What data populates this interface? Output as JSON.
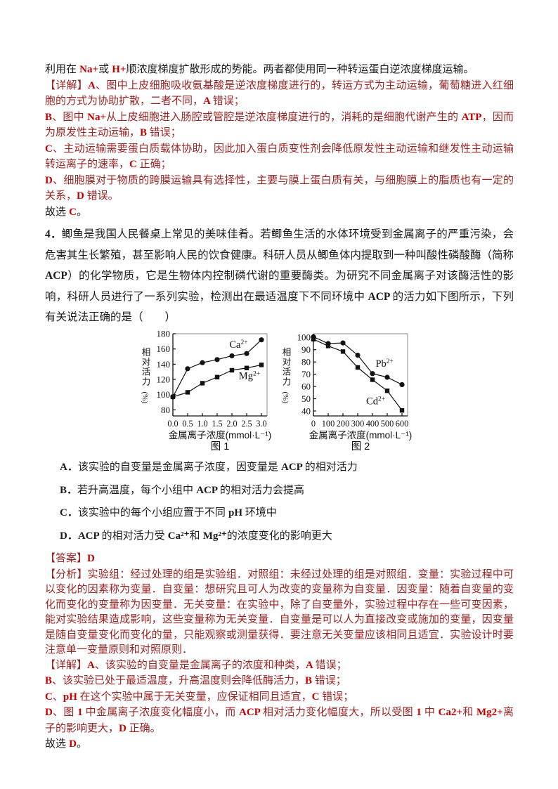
{
  "colors": {
    "text_black": "#1c1c1c",
    "text_maroon": "#9b2323",
    "text_red": "#c40000",
    "chart_axis": "#111111",
    "chart_box": "#8a8a8a"
  },
  "content": {
    "prev_tail": {
      "segments": [
        {
          "t": "利用在 ",
          "c": "black"
        },
        {
          "t": "Na+",
          "c": "red"
        },
        {
          "t": "或 ",
          "c": "black"
        },
        {
          "t": "H+",
          "c": "red"
        },
        {
          "t": "顺浓度梯度扩散形成的势能。两者都使用同一种转运蛋白逆浓度梯度运输。",
          "c": "black"
        }
      ]
    },
    "jiexi1_a": {
      "segments": [
        {
          "t": "【详解】",
          "c": "maroon"
        },
        {
          "t": "A",
          "c": "red"
        },
        {
          "t": "、图中上皮细胞吸收氨基酸是逆浓度梯度进行的，转运方式为主动运输，葡萄糖进入红细胞的方式为协助扩散，二者不同，",
          "c": "maroon"
        },
        {
          "t": "A ",
          "c": "red"
        },
        {
          "t": "错误；",
          "c": "maroon"
        }
      ]
    },
    "jiexi1_b": {
      "segments": [
        {
          "t": "B",
          "c": "red"
        },
        {
          "t": "、图中 ",
          "c": "maroon"
        },
        {
          "t": "Na+",
          "c": "red"
        },
        {
          "t": "从上皮细胞进入肠腔或管腔是逆浓度梯度进行的，消耗的是细胞代谢产生的 ",
          "c": "maroon"
        },
        {
          "t": "ATP",
          "c": "red"
        },
        {
          "t": "，因而为原发性主动运输，",
          "c": "maroon"
        },
        {
          "t": "B ",
          "c": "red"
        },
        {
          "t": "错误；",
          "c": "maroon"
        }
      ]
    },
    "jiexi1_c": {
      "segments": [
        {
          "t": "C",
          "c": "red"
        },
        {
          "t": "、主动运输需要蛋白质载体协助，因此加入蛋白质变性剂会降低原发性主动运输和继发性主动运输转运离子的速率，",
          "c": "maroon"
        },
        {
          "t": "C ",
          "c": "red"
        },
        {
          "t": "正确；",
          "c": "maroon"
        }
      ]
    },
    "jiexi1_d": {
      "segments": [
        {
          "t": "D",
          "c": "red"
        },
        {
          "t": "、细胞膜对于物质的跨膜运输具有选择性，主要与膜上蛋白质有关，与细胞膜上的脂质也有一定的关系，",
          "c": "maroon"
        },
        {
          "t": "D ",
          "c": "red"
        },
        {
          "t": "错误。",
          "c": "maroon"
        }
      ]
    },
    "jiexi1_conclusion": {
      "segments": [
        {
          "t": "故选 ",
          "c": "black"
        },
        {
          "t": "C",
          "c": "red"
        },
        {
          "t": "。",
          "c": "black"
        }
      ]
    },
    "q4_stem": {
      "segments": [
        {
          "t": "4．",
          "c": "blat"
        },
        {
          "t": "鲫鱼是我国人民餐桌上常见的美味佳肴。若鲫鱼生活的水体环境受到金属离子的严重污染，会危害其生长繁殖，甚至影响人民的饮食健康。科研人员从鲫鱼体内提取到一种叫酸性磷酸酶（简称 ",
          "c": "black"
        },
        {
          "t": "ACP",
          "c": "blat"
        },
        {
          "t": "）的化学物质，它是生物体内控制磷代谢的重要酶类。为研究不同金属离子对该酶活性的影响，科研人员进行了一系列实验，检测出在最适温度下不同环境中 ",
          "c": "black"
        },
        {
          "t": "ACP ",
          "c": "blat"
        },
        {
          "t": "的活力如下图所示，下列有关说法正确的是（　　）",
          "c": "black"
        }
      ]
    },
    "options": {
      "a": {
        "segments": [
          {
            "t": "A．",
            "c": "blat"
          },
          {
            "t": "该实验的自变量是金属离子浓度，因变量是 ",
            "c": "black"
          },
          {
            "t": "ACP ",
            "c": "blat"
          },
          {
            "t": "的相对活力",
            "c": "black"
          }
        ]
      },
      "b": {
        "segments": [
          {
            "t": "B．",
            "c": "blat"
          },
          {
            "t": "若升高温度，每个小组中 ",
            "c": "black"
          },
          {
            "t": "ACP ",
            "c": "blat"
          },
          {
            "t": "的相对活力会提高",
            "c": "black"
          }
        ]
      },
      "c": {
        "segments": [
          {
            "t": "C．",
            "c": "blat"
          },
          {
            "t": "该实验中的每个小组应置于不同 ",
            "c": "black"
          },
          {
            "t": "pH ",
            "c": "blat"
          },
          {
            "t": "环境中",
            "c": "black"
          }
        ]
      },
      "d": {
        "segments": [
          {
            "t": "D．",
            "c": "blat"
          },
          {
            "t": "ACP ",
            "c": "blat"
          },
          {
            "t": "的相对活力受 ",
            "c": "black"
          },
          {
            "t": "Ca²⁺",
            "c": "blat"
          },
          {
            "t": "和 ",
            "c": "black"
          },
          {
            "t": "Mg²⁺",
            "c": "blat"
          },
          {
            "t": "的浓度变化的影响更大",
            "c": "black"
          }
        ]
      }
    },
    "answer": {
      "segments": [
        {
          "t": "【答案】",
          "c": "maroon"
        },
        {
          "t": "D",
          "c": "red"
        }
      ]
    },
    "fenxi": {
      "segments": [
        {
          "t": "【分析】",
          "c": "maroon"
        },
        {
          "t": "实验组：经过处理的组是实验组．对照组：未经过处理的组是对照组．变量：实验过程中可以变化的因素称为变量．自变量：想研究且可人为改变的变量称为自变量．因变量：随着自变量的变化而变化的变量称为因变量．无关变量：在实验中，除了自变量外，实验过程中存在一些可变因素，能对实验结果造成影响，这些变量称为无关变量．自变量是可以人为直接改变或施加的变量，因变量是随自变量变化而变化的量，只能观察或测量获得．要注意无关变量应该相同且适宜．实验设计时要注意单一变量原则和对照原则．",
          "c": "maroon"
        }
      ]
    },
    "jiexi2_a": {
      "segments": [
        {
          "t": "【详解】",
          "c": "maroon"
        },
        {
          "t": "A",
          "c": "red"
        },
        {
          "t": "、该实验的自变量是金属离子的浓度和种类，",
          "c": "maroon"
        },
        {
          "t": "A ",
          "c": "red"
        },
        {
          "t": "错误；",
          "c": "maroon"
        }
      ]
    },
    "jiexi2_b": {
      "segments": [
        {
          "t": "B",
          "c": "red"
        },
        {
          "t": "、该实验已处于最适温度，升高温度则会降低酶活力，",
          "c": "maroon"
        },
        {
          "t": "B ",
          "c": "red"
        },
        {
          "t": "错误；",
          "c": "maroon"
        }
      ]
    },
    "jiexi2_c": {
      "segments": [
        {
          "t": "C",
          "c": "red"
        },
        {
          "t": "、",
          "c": "maroon"
        },
        {
          "t": "pH ",
          "c": "red"
        },
        {
          "t": "在这个实验中属于无关变量，应保证相同且适宜，",
          "c": "maroon"
        },
        {
          "t": "C ",
          "c": "red"
        },
        {
          "t": "错误；",
          "c": "maroon"
        }
      ]
    },
    "jiexi2_d": {
      "segments": [
        {
          "t": "D",
          "c": "red"
        },
        {
          "t": "、图 ",
          "c": "maroon"
        },
        {
          "t": "1 ",
          "c": "red"
        },
        {
          "t": "中金属离子浓度变化幅度小，而 ",
          "c": "maroon"
        },
        {
          "t": "ACP ",
          "c": "red"
        },
        {
          "t": "相对活力变化幅度大，所以受图 ",
          "c": "maroon"
        },
        {
          "t": "1 ",
          "c": "red"
        },
        {
          "t": "中 ",
          "c": "maroon"
        },
        {
          "t": "Ca2+",
          "c": "red"
        },
        {
          "t": "和 ",
          "c": "maroon"
        },
        {
          "t": "Mg2+",
          "c": "red"
        },
        {
          "t": "离子的影响更大，",
          "c": "maroon"
        },
        {
          "t": "D ",
          "c": "red"
        },
        {
          "t": "正确。",
          "c": "maroon"
        }
      ]
    },
    "jiexi2_conclusion": {
      "segments": [
        {
          "t": "故选 ",
          "c": "black"
        },
        {
          "t": "D",
          "c": "red"
        },
        {
          "t": "。",
          "c": "black"
        }
      ]
    }
  },
  "chart_data": [
    {
      "type": "line",
      "title": "图 1",
      "xlabel": "金属离子浓度(mmol·L⁻¹)",
      "ylabel": "相对活力(%)",
      "xtick_labels": [
        "0.0",
        "0.5",
        "1.0",
        "1.5",
        "2.0",
        "2.5",
        "3.0"
      ],
      "yticks": [
        80,
        100,
        120,
        140,
        160,
        180
      ],
      "ylim": [
        72,
        180
      ],
      "grid": false,
      "legend_position": "inline-labels",
      "series": [
        {
          "name": "Ca2+",
          "label_base": "Ca",
          "label_sup": "2+",
          "marker": "circle",
          "values": [
            97,
            134,
            142,
            146,
            151,
            154,
            172
          ],
          "label_at": {
            "x": 0.6,
            "y": 0.17
          }
        },
        {
          "name": "Mg2+",
          "label_base": "Mg",
          "label_sup": "2+",
          "marker": "square",
          "values": [
            97,
            103,
            115,
            123,
            132,
            135,
            139
          ],
          "label_at": {
            "x": 0.7,
            "y": 0.55
          }
        }
      ]
    },
    {
      "type": "line",
      "title": "图 2",
      "xlabel": "金属离子浓度(mmol·L⁻¹)",
      "ylabel": "相对活力(%)",
      "xtick_labels": [
        "0",
        "100",
        "200",
        "300",
        "400",
        "500",
        "600"
      ],
      "yticks": [
        40,
        50,
        60,
        70,
        80,
        90,
        100
      ],
      "ylim": [
        36,
        103
      ],
      "grid": false,
      "legend_position": "inline-labels",
      "series": [
        {
          "name": "Pb2+",
          "label_base": "Pb",
          "label_sup": "2+",
          "marker": "circle",
          "values": [
            100.5,
            95,
            95.5,
            85.5,
            70.5,
            67.5,
            61.5
          ],
          "label_at": {
            "x": 0.66,
            "y": 0.4
          }
        },
        {
          "name": "Cd2+",
          "label_base": "Cd",
          "label_sup": "2+",
          "marker": "square",
          "values": [
            98.5,
            93,
            88.5,
            75.5,
            65.5,
            56.5,
            40.5
          ],
          "label_at": {
            "x": 0.56,
            "y": 0.86
          }
        }
      ]
    }
  ]
}
